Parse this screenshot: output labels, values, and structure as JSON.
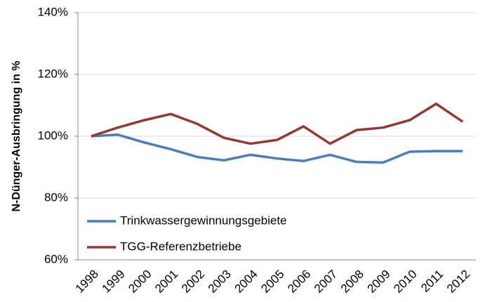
{
  "chart_data": {
    "type": "line",
    "ylabel": "N-Dünger-Ausbringung in %",
    "categories": [
      "1998",
      "1999",
      "2000",
      "2001",
      "2002",
      "2003",
      "2004",
      "2005",
      "2006",
      "2007",
      "2008",
      "2009",
      "2010",
      "2011",
      "2012"
    ],
    "series": [
      {
        "name": "Trinkwassergewinnungsgebiete",
        "color": "#4a7ebb",
        "values": [
          100,
          100.5,
          98,
          95.8,
          93.3,
          92.2,
          94,
          92.8,
          92,
          94,
          91.7,
          91.5,
          95,
          95.2,
          95.2
        ]
      },
      {
        "name": "TGG-Referenzbetriebe",
        "color": "#953735",
        "values": [
          100,
          102.8,
          105.2,
          107.2,
          104,
          99.5,
          97.6,
          98.8,
          103.2,
          97.6,
          102,
          102.8,
          105.2,
          110.5,
          104.7
        ]
      }
    ],
    "ylim": [
      60,
      140
    ],
    "yticks": [
      {
        "value": 60,
        "label": "60%"
      },
      {
        "value": 80,
        "label": "80%"
      },
      {
        "value": 100,
        "label": "100%"
      },
      {
        "value": 120,
        "label": "120%"
      },
      {
        "value": 140,
        "label": "140%"
      }
    ],
    "grid": true,
    "legend": "lower-left"
  }
}
